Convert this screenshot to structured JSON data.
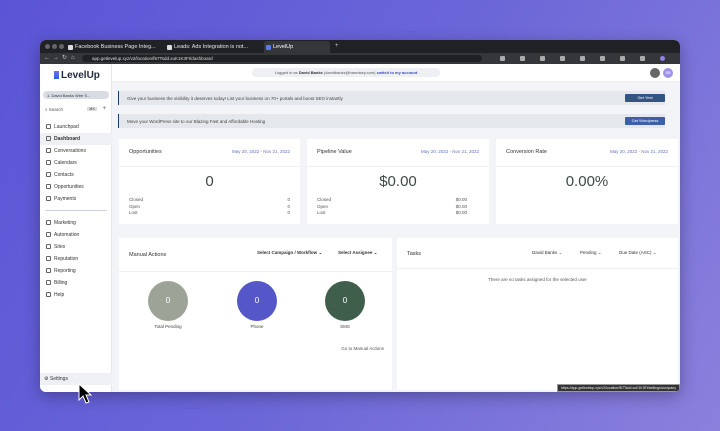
{
  "browser": {
    "tabs": [
      "Facebook Business Page Integ...",
      "Leads: Ads Integration is not...",
      "LevelUp"
    ],
    "url": "app.getlevelup.xyz/v2/location/f67Tsdd.xuK1K3Ft/dashboard"
  },
  "sidebar": {
    "logo": "LevelUp",
    "account": "1. David Banks Wire S...",
    "search": "Search",
    "search_kbd": "⌘K",
    "items": [
      "Launchpad",
      "Dashboard",
      "Conversations",
      "Calendars",
      "Contacts",
      "Opportunities",
      "Payments"
    ],
    "items2": [
      "Marketing",
      "Automation",
      "Sites",
      "Reputation",
      "Reporting",
      "Billing",
      "Help"
    ],
    "settings": "Settings"
  },
  "topbar": {
    "logged_prefix": "Logged in as",
    "user": "David Banks",
    "email": "(davidbanks@hanmkey.com)",
    "switch": "switch to my account",
    "avatar": "DB"
  },
  "banners": [
    {
      "text": "Give your business the visibility it deserves today! List your business on 70+ portals and boost SEO instantly",
      "button": "Get Yext"
    },
    {
      "text": "Move your WordPress site to our Blazing Fast and Affordable Hosting",
      "button": "Get Wordpress"
    }
  ],
  "cards": [
    {
      "title": "Opportunities",
      "date": "May 20, 2022 - Nov 21, 2022",
      "value": "0",
      "rows": [
        [
          "Closed",
          "0"
        ],
        [
          "Open",
          "0"
        ],
        [
          "Lost",
          "0"
        ]
      ]
    },
    {
      "title": "Pipeline Value",
      "date": "May 20, 2022 - Nov 21, 2022",
      "value": "$0.00",
      "rows": [
        [
          "Closed",
          "$0.00"
        ],
        [
          "Open",
          "$0.00"
        ],
        [
          "Lost",
          "$0.00"
        ]
      ]
    },
    {
      "title": "Conversion Rate",
      "date": "May 20, 2022 - Nov 21, 2022",
      "value": "0.00%"
    }
  ],
  "manual": {
    "title": "Manual Actions",
    "campaign": "Select Campaign / Workflow",
    "assignee": "Select Assignee",
    "circles": [
      {
        "value": "0",
        "label": "Total Pending",
        "color": "#9ea397"
      },
      {
        "value": "0",
        "label": "Phone",
        "color": "#5557c9"
      },
      {
        "value": "0",
        "label": "SMS",
        "color": "#3f5f4c"
      }
    ],
    "link": "Go to Manual Actions"
  },
  "tasks": {
    "title": "Tasks",
    "user": "David Banks",
    "status": "Pending",
    "sort": "Due Date (ASC)",
    "empty": "There are no tasks assigned for the selected user"
  },
  "status_url": "https://app.getlevelup.xyz/v2/location/f67Tsdd.xuK1K3Ft/settings/company"
}
